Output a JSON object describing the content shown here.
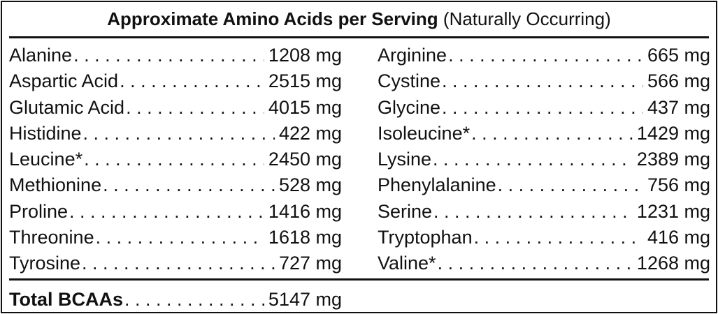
{
  "title": {
    "bold": "Approximate Amino Acids per Serving",
    "note": "(Naturally Occurring)"
  },
  "left": [
    {
      "name": "Alanine",
      "value": "1208 mg"
    },
    {
      "name": "Aspartic Acid",
      "value": "2515 mg"
    },
    {
      "name": "Glutamic Acid",
      "value": "4015 mg"
    },
    {
      "name": "Histidine",
      "value": "422 mg"
    },
    {
      "name": "Leucine*",
      "value": "2450 mg"
    },
    {
      "name": "Methionine",
      "value": "528 mg"
    },
    {
      "name": "Proline",
      "value": "1416 mg"
    },
    {
      "name": "Threonine",
      "value": "1618 mg"
    },
    {
      "name": "Tyrosine",
      "value": "727 mg"
    }
  ],
  "right": [
    {
      "name": "Arginine",
      "value": "665 mg"
    },
    {
      "name": "Cystine",
      "value": "566 mg"
    },
    {
      "name": "Glycine",
      "value": "437 mg"
    },
    {
      "name": "Isoleucine*",
      "value": "1429 mg"
    },
    {
      "name": "Lysine",
      "value": "2389 mg"
    },
    {
      "name": "Phenylalanine",
      "value": "756 mg"
    },
    {
      "name": "Serine",
      "value": "1231 mg"
    },
    {
      "name": "Tryptophan",
      "value": "416 mg"
    },
    {
      "name": "Valine*",
      "value": "1268 mg"
    }
  ],
  "total": {
    "name": "Total BCAAs",
    "value": "5147 mg"
  }
}
